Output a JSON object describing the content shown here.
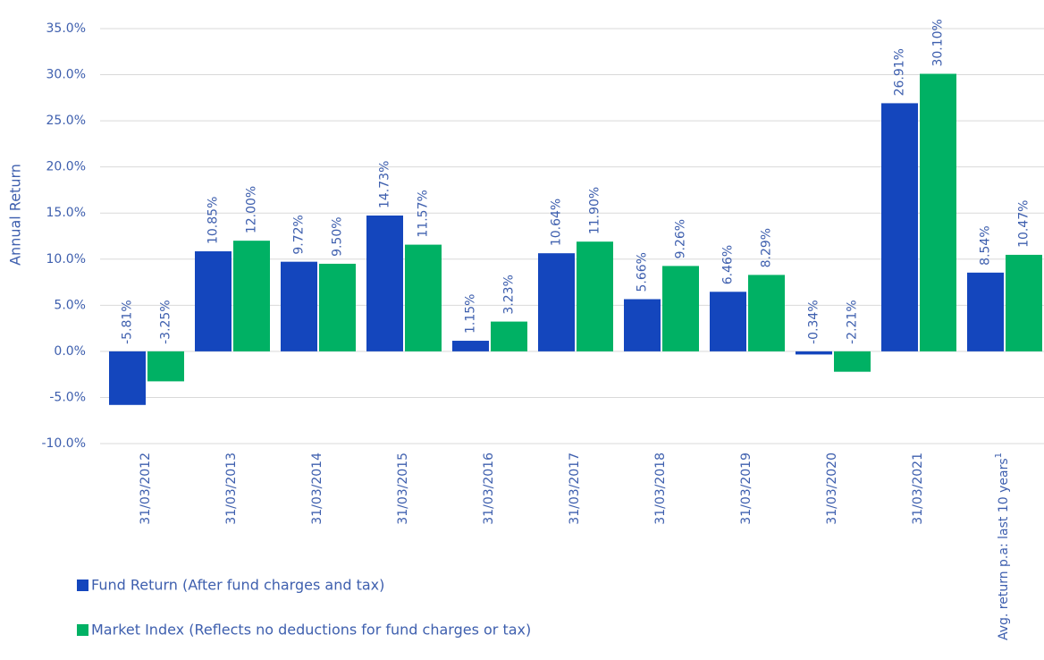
{
  "chart_data": {
    "type": "bar",
    "y_label": "Annual Return",
    "categories": [
      "31/03/2012",
      "31/03/2013",
      "31/03/2014",
      "31/03/2015",
      "31/03/2016",
      "31/03/2017",
      "31/03/2018",
      "31/03/2019",
      "31/03/2020",
      "31/03/2021",
      "Avg. return p.a: last 10 years"
    ],
    "category_footnote": "1",
    "series": [
      {
        "name": "Fund Return (After fund charges and tax)",
        "color": "#1446bd",
        "values": [
          -5.81,
          10.85,
          9.72,
          14.73,
          1.15,
          10.64,
          5.66,
          6.46,
          -0.34,
          26.91,
          8.54
        ],
        "value_labels": [
          "-5.81%",
          "10.85%",
          "9.72%",
          "14.73%",
          "1.15%",
          "10.64%",
          "5.66%",
          "6.46%",
          "-0.34%",
          "26.91%",
          "8.54%"
        ]
      },
      {
        "name": "Market Index (Reflects no deductions for fund charges or tax)",
        "color": "#00b164",
        "values": [
          -3.25,
          12.0,
          9.5,
          11.57,
          3.23,
          11.9,
          9.26,
          8.29,
          -2.21,
          30.1,
          10.47
        ],
        "value_labels": [
          "-3.25%",
          "12.00%",
          "9.50%",
          "11.57%",
          "3.23%",
          "11.90%",
          "9.26%",
          "8.29%",
          "-2.21%",
          "30.10%",
          "10.47%"
        ]
      }
    ],
    "ylim": [
      -10,
      35
    ],
    "yticks": [
      {
        "value": -10,
        "label": "-10.0%"
      },
      {
        "value": -5,
        "label": "-5.0%"
      },
      {
        "value": 0,
        "label": "0.0%"
      },
      {
        "value": 5,
        "label": "5.0%"
      },
      {
        "value": 10,
        "label": "10.0%"
      },
      {
        "value": 15,
        "label": "15.0%"
      },
      {
        "value": 20,
        "label": "20.0%"
      },
      {
        "value": 25,
        "label": "25.0%"
      },
      {
        "value": 30,
        "label": "30.0%"
      },
      {
        "value": 35,
        "label": "35.0%"
      }
    ],
    "grid": true
  }
}
